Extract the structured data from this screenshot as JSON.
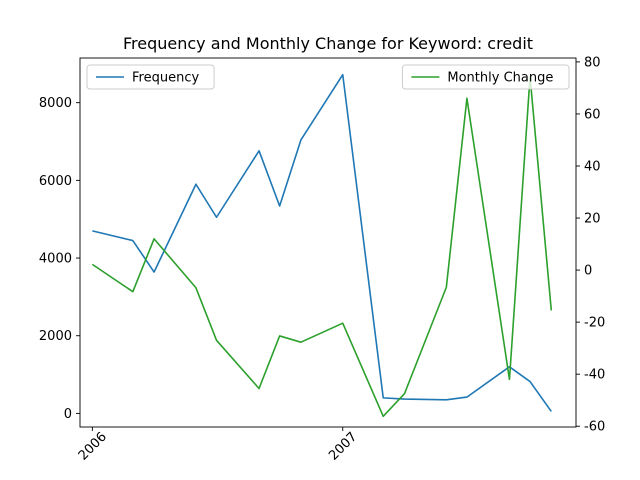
{
  "chart_data": {
    "type": "line",
    "title": "Frequency and Monthly Change for Keyword: credit",
    "x_tick_labels": [
      "2006",
      "2007"
    ],
    "x": [
      "2006-01",
      "2006-03",
      "2006-04",
      "2006-06",
      "2006-07",
      "2006-09",
      "2006-10",
      "2006-11",
      "2007-01",
      "2007-03",
      "2007-04",
      "2007-06",
      "2007-07",
      "2007-09",
      "2007-10",
      "2007-11"
    ],
    "xlim": [
      "2005-12-14",
      "2007-12-07"
    ],
    "left_axis": {
      "ylim": [
        -350,
        9150
      ],
      "ticks": [
        0,
        2000,
        4000,
        6000,
        8000
      ]
    },
    "right_axis": {
      "ylim": [
        -60.3,
        81.5
      ],
      "ticks": [
        -60,
        -40,
        -20,
        0,
        20,
        40,
        60,
        80
      ]
    },
    "series": [
      {
        "name": "Frequency",
        "axis": "left",
        "color": "#1f77b4",
        "values": [
          4700,
          4450,
          3640,
          5900,
          5050,
          6760,
          5340,
          7040,
          8720,
          400,
          370,
          350,
          420,
          1200,
          820,
          50
        ]
      },
      {
        "name": "Monthly Change",
        "axis": "right",
        "color": "#2ca02c",
        "values": [
          2.2,
          -8.3,
          12,
          -6.8,
          -27,
          -45.5,
          -25.3,
          -27.7,
          -20.4,
          -56.2,
          -47.5,
          -6.6,
          66,
          -42,
          74.3,
          -15.5
        ]
      }
    ],
    "legends": [
      {
        "position": "upper-left",
        "series": [
          "Frequency"
        ]
      },
      {
        "position": "upper-right",
        "series": [
          "Monthly Change"
        ]
      }
    ],
    "grid": false
  }
}
